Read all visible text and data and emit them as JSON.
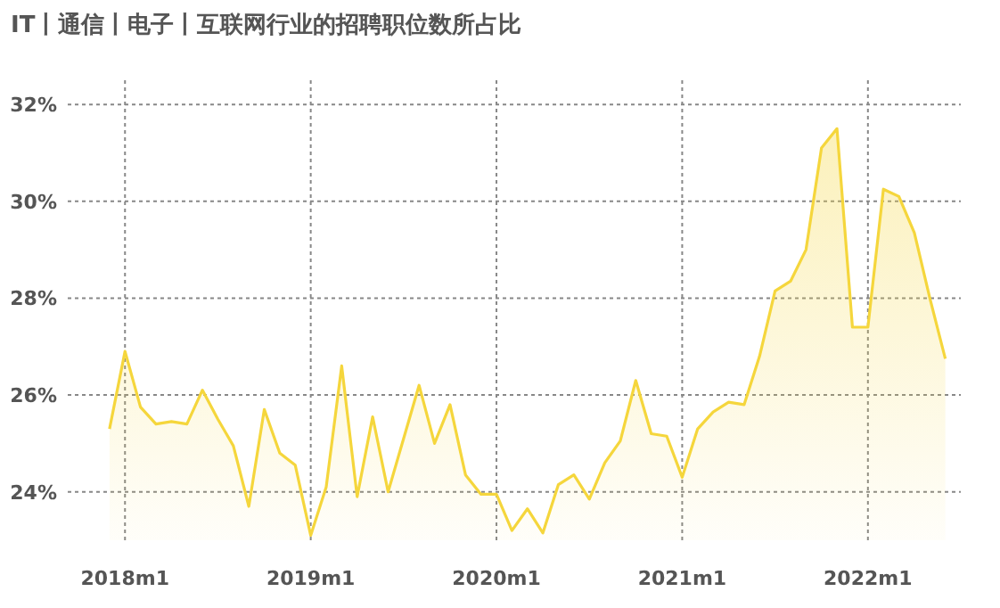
{
  "chart_data": {
    "type": "area",
    "title": "IT丨通信丨电子丨互联网行业的招聘职位数所占比",
    "x": [
      "2017-12",
      "2018-01",
      "2018-02",
      "2018-03",
      "2018-04",
      "2018-05",
      "2018-06",
      "2018-07",
      "2018-08",
      "2018-09",
      "2018-10",
      "2018-11",
      "2018-12",
      "2019-01",
      "2019-02",
      "2019-03",
      "2019-04",
      "2019-05",
      "2019-06",
      "2019-07",
      "2019-08",
      "2019-09",
      "2019-10",
      "2019-11",
      "2019-12",
      "2020-01",
      "2020-02",
      "2020-03",
      "2020-04",
      "2020-05",
      "2020-06",
      "2020-07",
      "2020-08",
      "2020-09",
      "2020-10",
      "2020-11",
      "2020-12",
      "2021-01",
      "2021-02",
      "2021-03",
      "2021-04",
      "2021-05",
      "2021-06",
      "2021-07",
      "2021-08",
      "2021-09",
      "2021-10",
      "2021-11",
      "2021-12",
      "2022-01",
      "2022-02",
      "2022-03",
      "2022-04",
      "2022-05",
      "2022-06"
    ],
    "series": [
      {
        "color": "#f5d63c",
        "values": [
          25.3,
          26.9,
          25.75,
          25.4,
          25.45,
          25.4,
          26.1,
          25.5,
          24.95,
          23.7,
          25.7,
          24.8,
          24.55,
          23.1,
          24.1,
          26.6,
          23.9,
          25.55,
          24.0,
          25.1,
          26.2,
          25.0,
          25.8,
          24.35,
          23.95,
          23.95,
          23.2,
          23.65,
          23.15,
          24.15,
          24.35,
          23.85,
          24.6,
          25.05,
          26.3,
          25.2,
          25.15,
          24.3,
          25.3,
          25.65,
          25.85,
          25.8,
          26.8,
          28.15,
          28.35,
          29.0,
          31.1,
          31.5,
          27.4,
          27.4,
          30.25,
          30.1,
          29.35,
          28.0,
          26.75
        ]
      }
    ],
    "xlim": [
      "2017-09-10",
      "2022-07-01"
    ],
    "ylim": [
      23,
      32.5
    ],
    "xticks": [
      {
        "value": "2018-01",
        "label": "2018m1"
      },
      {
        "value": "2019-01",
        "label": "2019m1"
      },
      {
        "value": "2020-01",
        "label": "2020m1"
      },
      {
        "value": "2021-01",
        "label": "2021m1"
      },
      {
        "value": "2022-01",
        "label": "2022m1"
      }
    ],
    "yticks": [
      {
        "value": 24,
        "label": "24%"
      },
      {
        "value": 26,
        "label": "26%"
      },
      {
        "value": 28,
        "label": "28%"
      },
      {
        "value": 30,
        "label": "30%"
      },
      {
        "value": 32,
        "label": "32%"
      }
    ],
    "grid": true
  }
}
